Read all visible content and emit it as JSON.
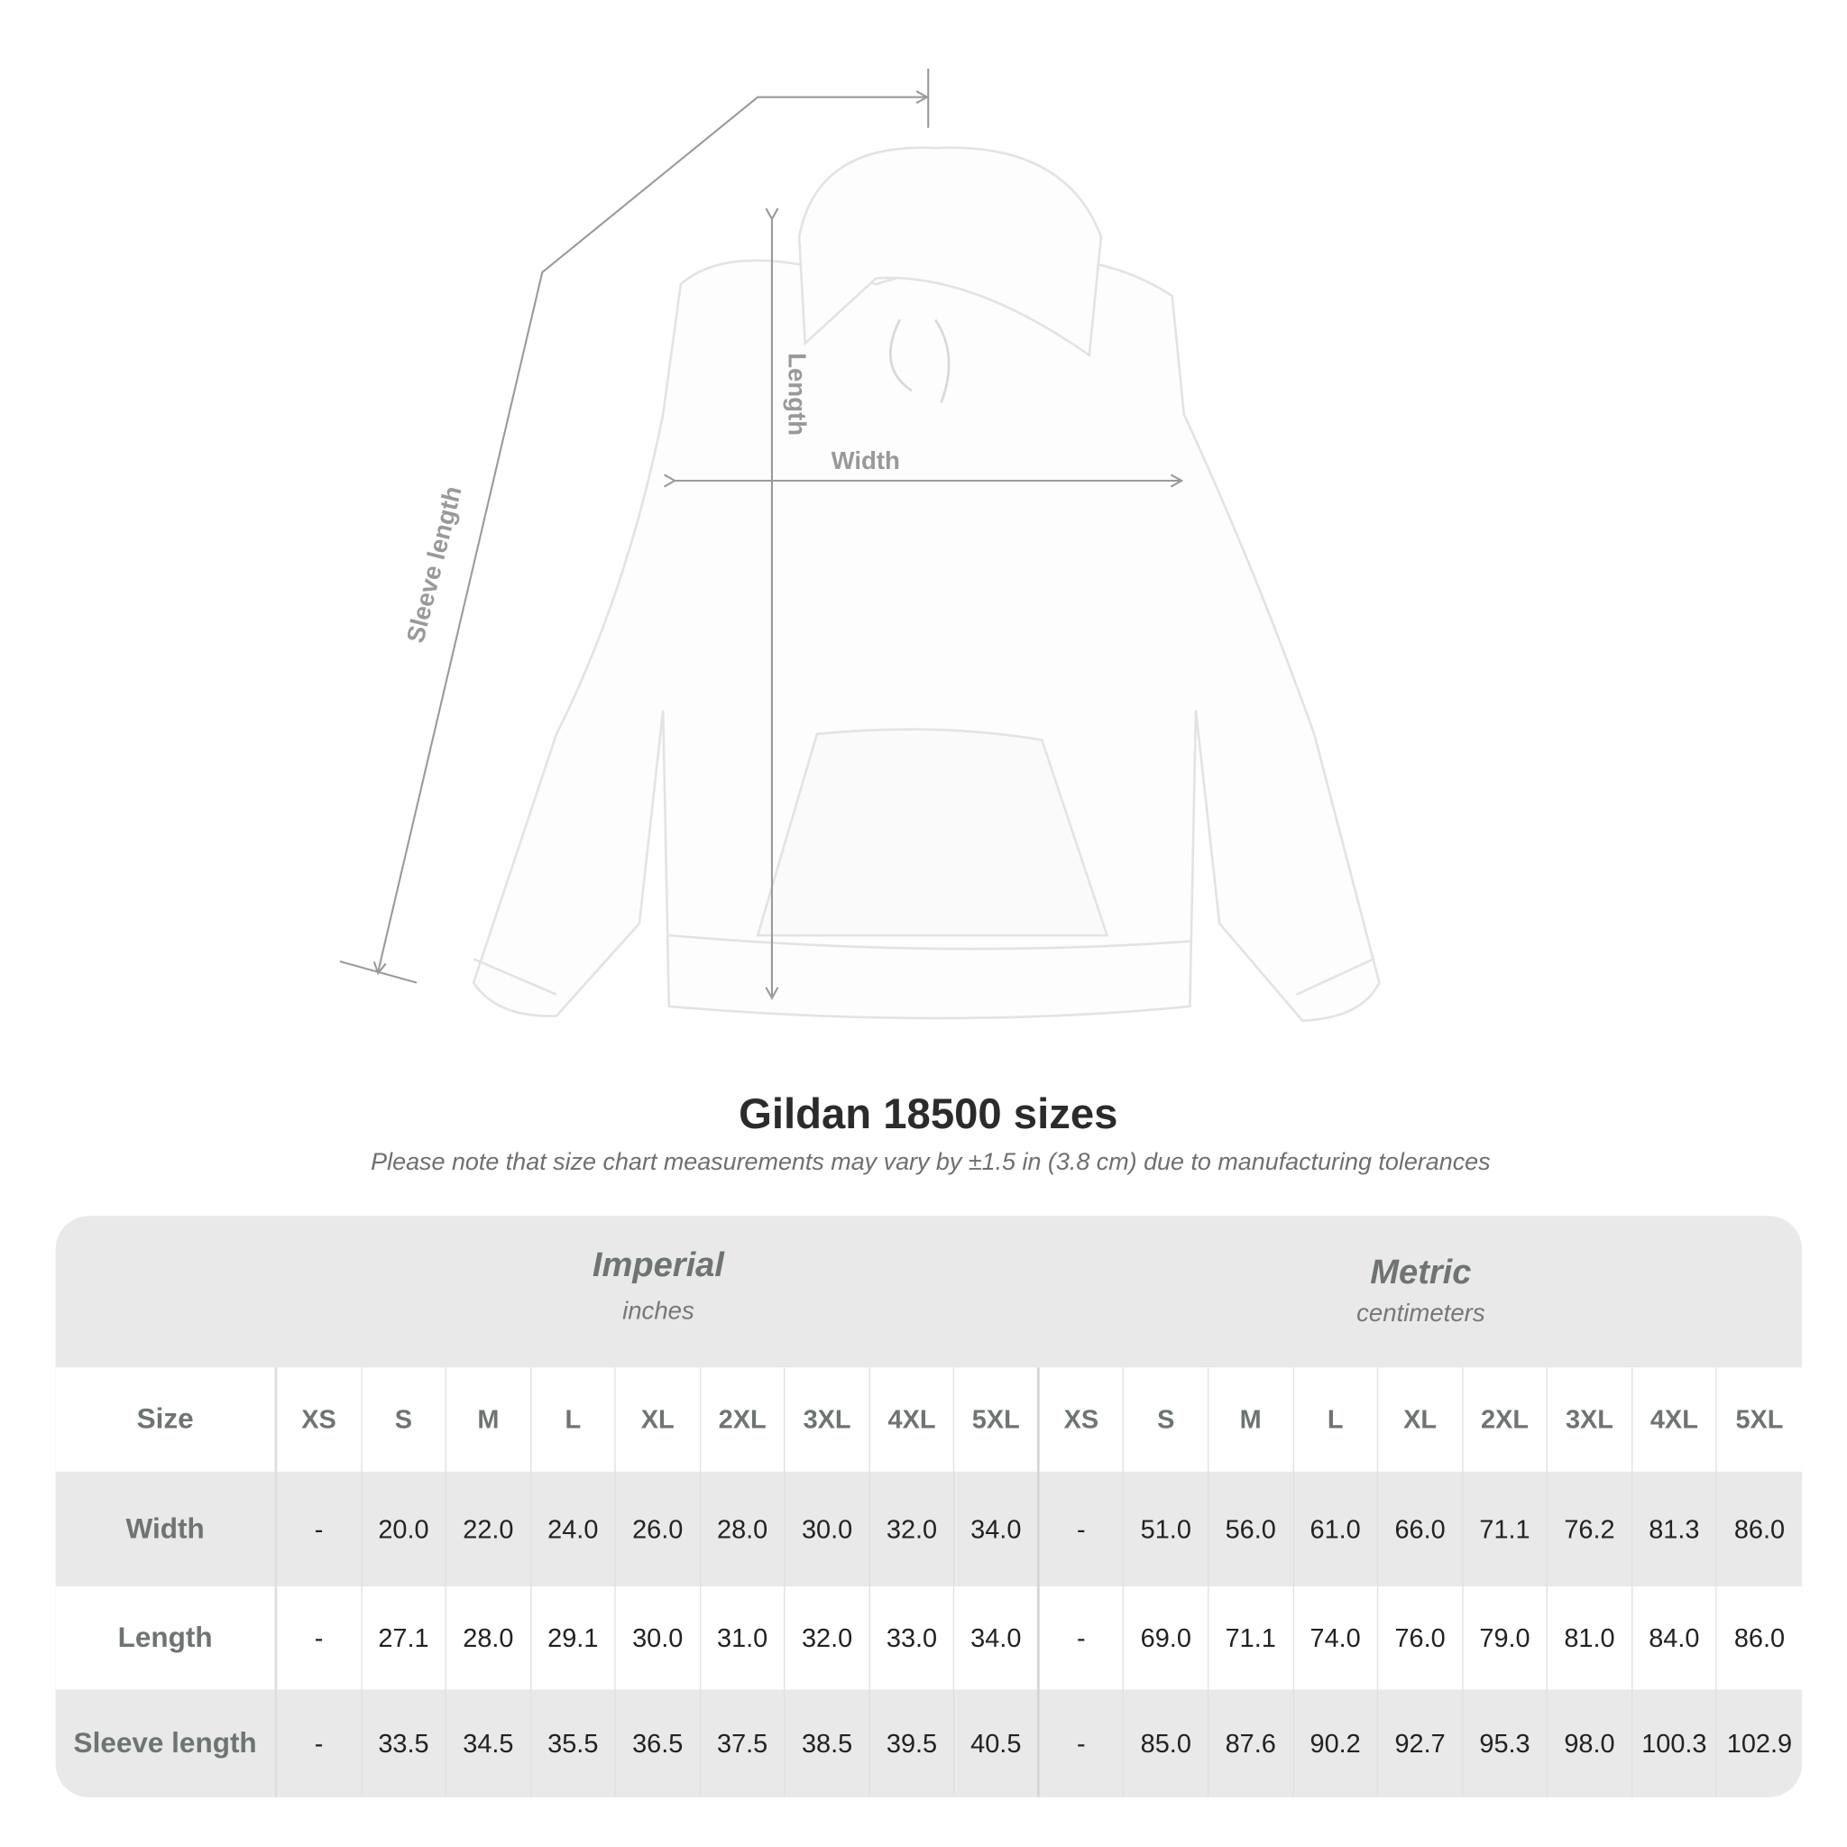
{
  "diagram": {
    "labels": {
      "length": "Length",
      "width": "Width",
      "sleeve_length": "Sleeve length"
    },
    "line_color": "#9a9a9a",
    "garment_color": "#ffffff"
  },
  "title": "Gildan 18500 sizes",
  "note": "Please note that size chart measurements may vary by ±1.5 in (3.8 cm) due to manufacturing tolerances",
  "table": {
    "imperial": {
      "title": "Imperial",
      "unit": "inches"
    },
    "metric": {
      "title": "Metric",
      "unit": "centimeters"
    },
    "size_label": "Size",
    "sizes": [
      "XS",
      "S",
      "M",
      "L",
      "XL",
      "2XL",
      "3XL",
      "4XL",
      "5XL"
    ],
    "rows": [
      {
        "label": "Width",
        "imperial": [
          "-",
          "20.0",
          "22.0",
          "24.0",
          "26.0",
          "28.0",
          "30.0",
          "32.0",
          "34.0"
        ],
        "metric": [
          "-",
          "51.0",
          "56.0",
          "61.0",
          "66.0",
          "71.1",
          "76.2",
          "81.3",
          "86.0"
        ]
      },
      {
        "label": "Length",
        "imperial": [
          "-",
          "27.1",
          "28.0",
          "29.1",
          "30.0",
          "31.0",
          "32.0",
          "33.0",
          "34.0"
        ],
        "metric": [
          "-",
          "69.0",
          "71.1",
          "74.0",
          "76.0",
          "79.0",
          "81.0",
          "84.0",
          "86.0"
        ]
      },
      {
        "label": "Sleeve length",
        "imperial": [
          "-",
          "33.5",
          "34.5",
          "35.5",
          "36.5",
          "37.5",
          "38.5",
          "39.5",
          "40.5"
        ],
        "metric": [
          "-",
          "85.0",
          "87.6",
          "90.2",
          "92.7",
          "95.3",
          "98.0",
          "100.3",
          "102.9"
        ]
      }
    ],
    "colors": {
      "band": "#e9e9e9",
      "header_text": "#6e7373"
    }
  }
}
